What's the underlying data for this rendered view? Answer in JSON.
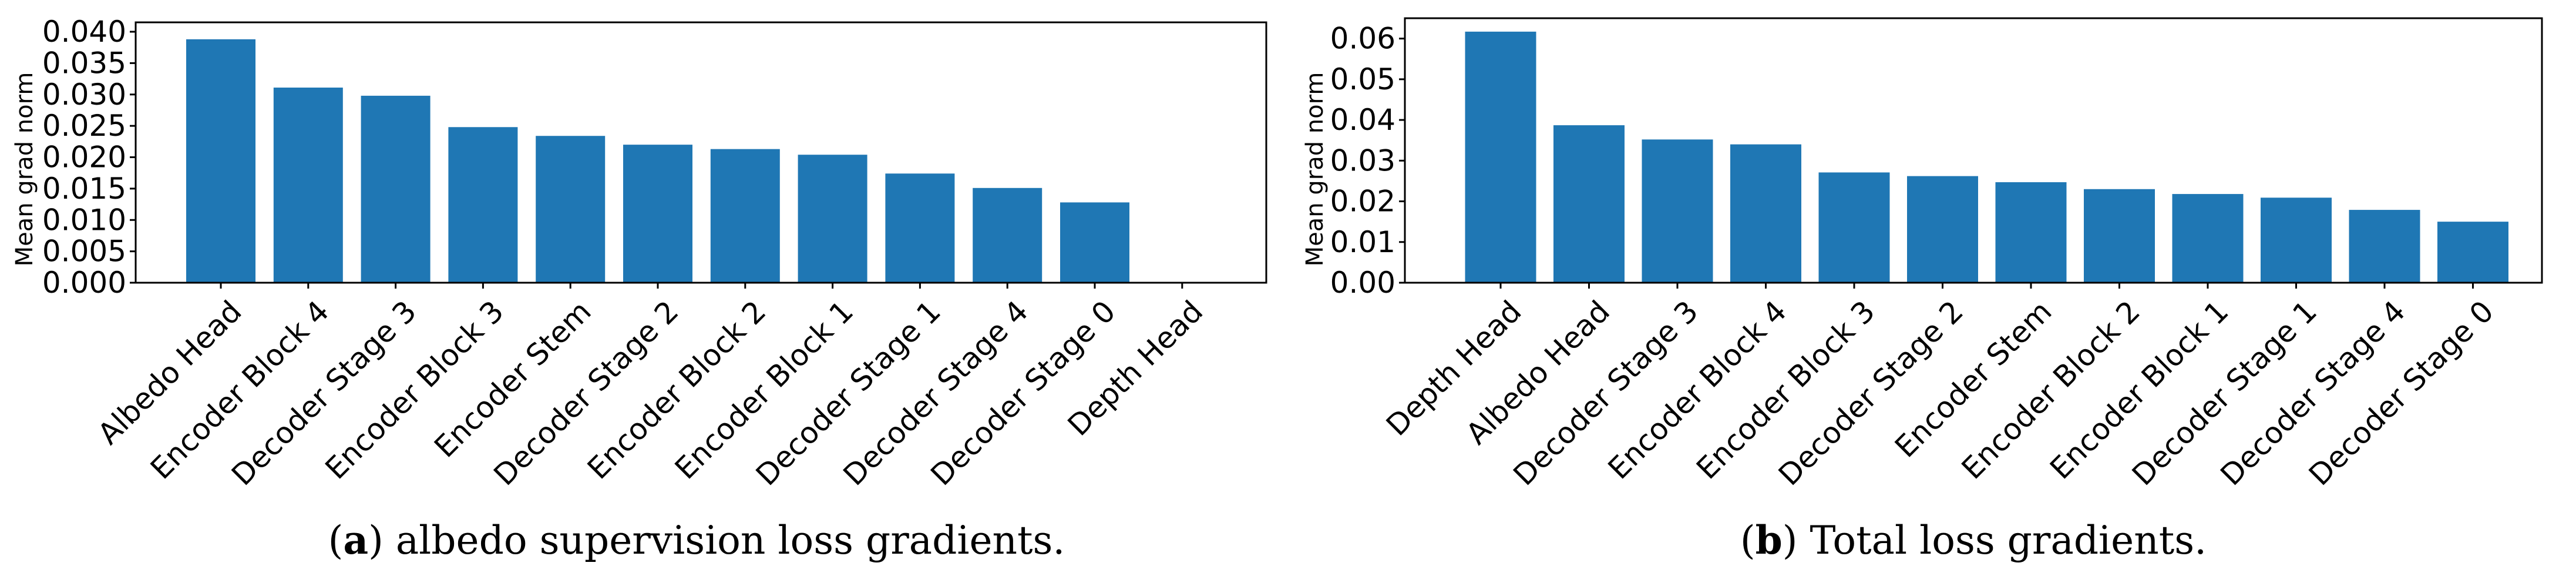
{
  "colors": {
    "bar": "#1f77b4",
    "axis": "#000000"
  },
  "captions": [
    {
      "letter": "a",
      "text": ") albedo supervision loss gradients."
    },
    {
      "letter": "b",
      "text": ") Total loss gradients."
    }
  ],
  "chart_data": [
    {
      "type": "bar",
      "ylabel": "Mean grad norm",
      "ylim": [
        0,
        0.0415
      ],
      "yticks": [
        0.0,
        0.005,
        0.01,
        0.015,
        0.02,
        0.025,
        0.03,
        0.035,
        0.04
      ],
      "ytick_labels": [
        "0.000",
        "0.005",
        "0.010",
        "0.015",
        "0.020",
        "0.025",
        "0.030",
        "0.035",
        "0.040"
      ],
      "categories": [
        "Albedo Head",
        "Encoder Block 4",
        "Decoder Stage 3",
        "Encoder Block 3",
        "Encoder Stem",
        "Decoder Stage 2",
        "Encoder Block 2",
        "Encoder Block 1",
        "Decoder Stage 1",
        "Decoder Stage 4",
        "Decoder Stage 0",
        "Depth Head"
      ],
      "values": [
        0.0388,
        0.0311,
        0.0298,
        0.0248,
        0.0234,
        0.022,
        0.0213,
        0.0204,
        0.0174,
        0.0151,
        0.0128,
        0.0
      ],
      "grid": false
    },
    {
      "type": "bar",
      "ylabel": "Mean grad norm",
      "ylim": [
        0,
        0.065
      ],
      "yticks": [
        0.0,
        0.01,
        0.02,
        0.03,
        0.04,
        0.05,
        0.06
      ],
      "ytick_labels": [
        "0.00",
        "0.01",
        "0.02",
        "0.03",
        "0.04",
        "0.05",
        "0.06"
      ],
      "categories": [
        "Depth Head",
        "Albedo Head",
        "Decoder Stage 3",
        "Encoder Block 4",
        "Encoder Block 3",
        "Decoder Stage 2",
        "Encoder Stem",
        "Encoder Block 2",
        "Encoder Block 1",
        "Decoder Stage 1",
        "Decoder Stage 4",
        "Decoder Stage 0"
      ],
      "values": [
        0.0617,
        0.0387,
        0.0352,
        0.034,
        0.0271,
        0.0262,
        0.0247,
        0.023,
        0.0218,
        0.0209,
        0.0179,
        0.015
      ],
      "grid": false
    }
  ]
}
